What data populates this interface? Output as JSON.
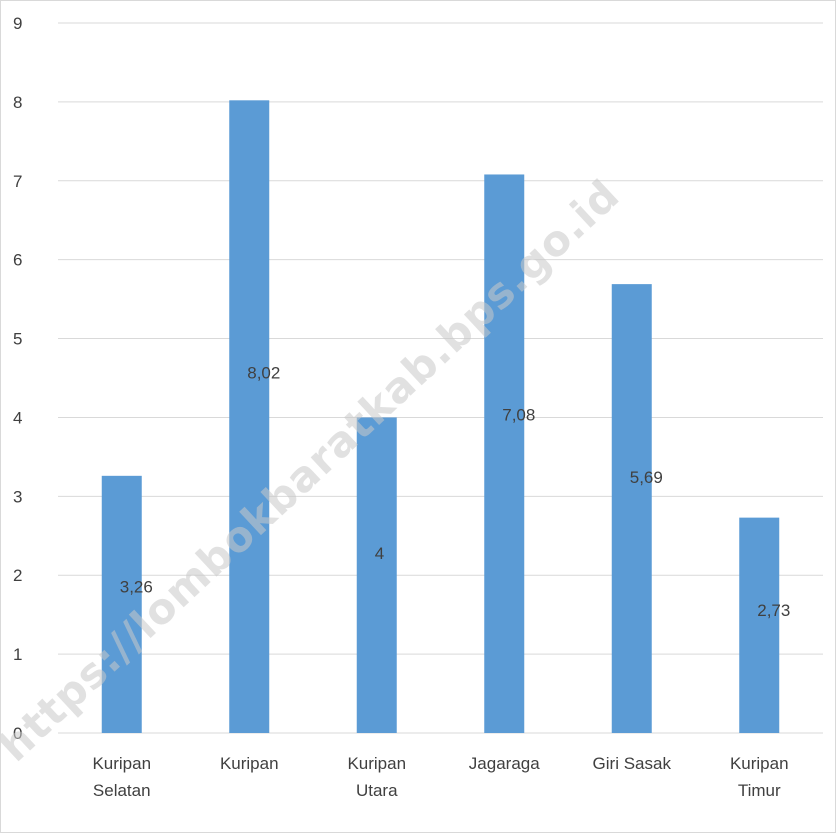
{
  "watermark": {
    "text": "https://lombokbaratkab.bps.go.id"
  },
  "chart_data": {
    "type": "bar",
    "categories": [
      [
        "Kuripan",
        "Selatan"
      ],
      [
        "Kuripan"
      ],
      [
        "Kuripan",
        "Utara"
      ],
      [
        "Jagaraga"
      ],
      [
        "Giri Sasak"
      ],
      [
        "Kuripan",
        "Timur"
      ]
    ],
    "values": [
      3.26,
      8.02,
      4,
      7.08,
      5.69,
      2.73
    ],
    "value_labels": [
      "3,26",
      "8,02",
      "4",
      "7,08",
      "5,69",
      "2,73"
    ],
    "ylim": [
      0,
      9
    ],
    "yticks": [
      "0",
      "1",
      "2",
      "3",
      "4",
      "5",
      "6",
      "7",
      "8",
      "9"
    ],
    "grid": true,
    "legend": "none",
    "bar_color": "#5b9bd5",
    "grid_color": "#d9d9d9",
    "text_color": "#404040"
  }
}
